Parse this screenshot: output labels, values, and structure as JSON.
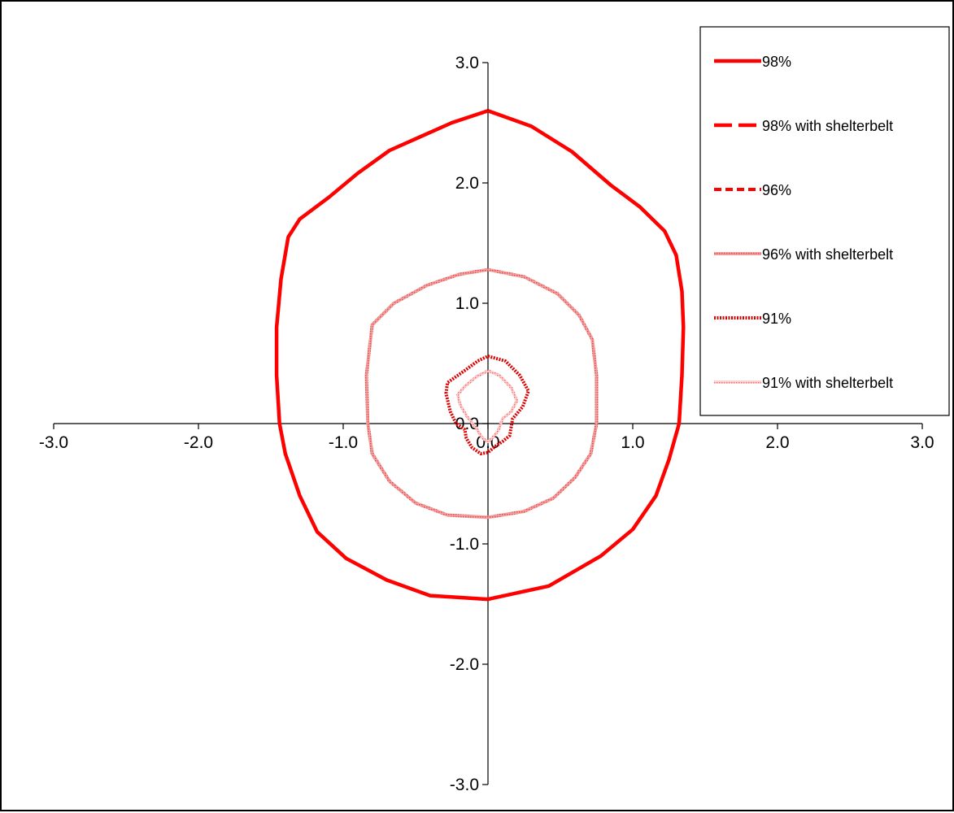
{
  "chart_data": {
    "type": "line",
    "title": "",
    "xlabel": "",
    "ylabel": "",
    "xlim": [
      -3.0,
      3.0
    ],
    "ylim": [
      -3.0,
      3.0
    ],
    "axes_cross_at_origin": true,
    "grid": false,
    "legend_position": "top-right",
    "x_tick_labels": [
      "-3.0",
      "-2.0",
      "-1.0",
      "0.0",
      "1.0",
      "2.0",
      "3.0"
    ],
    "y_tick_labels": [
      "3.0",
      "2.0",
      "1.0",
      "0.0",
      "-1.0",
      "-2.0",
      "-3.0"
    ],
    "x_tick_values": [
      -3,
      -2,
      -1,
      0,
      1,
      2,
      3
    ],
    "y_tick_values": [
      3,
      2,
      1,
      0,
      -1,
      -2,
      -3
    ],
    "series": [
      {
        "name": "98%",
        "color": "#ff0000",
        "style": "solid",
        "points": [
          [
            0.0,
            2.6
          ],
          [
            0.3,
            2.47
          ],
          [
            0.58,
            2.26
          ],
          [
            0.85,
            1.98
          ],
          [
            1.05,
            1.8
          ],
          [
            1.22,
            1.6
          ],
          [
            1.3,
            1.4
          ],
          [
            1.34,
            1.1
          ],
          [
            1.35,
            0.8
          ],
          [
            1.34,
            0.4
          ],
          [
            1.32,
            0.0
          ],
          [
            1.25,
            -0.3
          ],
          [
            1.16,
            -0.6
          ],
          [
            1.0,
            -0.88
          ],
          [
            0.78,
            -1.1
          ],
          [
            0.42,
            -1.35
          ],
          [
            0.0,
            -1.46
          ],
          [
            -0.4,
            -1.43
          ],
          [
            -0.7,
            -1.3
          ],
          [
            -0.98,
            -1.12
          ],
          [
            -1.18,
            -0.9
          ],
          [
            -1.3,
            -0.6
          ],
          [
            -1.4,
            -0.25
          ],
          [
            -1.44,
            0.0
          ],
          [
            -1.46,
            0.4
          ],
          [
            -1.46,
            0.8
          ],
          [
            -1.43,
            1.2
          ],
          [
            -1.38,
            1.55
          ],
          [
            -1.3,
            1.7
          ],
          [
            -1.1,
            1.88
          ],
          [
            -0.9,
            2.08
          ],
          [
            -0.68,
            2.27
          ],
          [
            -0.25,
            2.5
          ],
          [
            0.0,
            2.6
          ]
        ]
      },
      {
        "name": "98% with shelterbelt",
        "color": "#ff0000",
        "style": "dashed",
        "points": []
      },
      {
        "name": "96%",
        "color": "#ff0000",
        "style": "short-dashed",
        "points": []
      },
      {
        "name": "96% with shelterbelt",
        "color": "#f08080",
        "style": "solid-hatched",
        "points": [
          [
            0.0,
            1.28
          ],
          [
            0.25,
            1.22
          ],
          [
            0.48,
            1.08
          ],
          [
            0.63,
            0.9
          ],
          [
            0.72,
            0.7
          ],
          [
            0.75,
            0.4
          ],
          [
            0.75,
            0.0
          ],
          [
            0.71,
            -0.25
          ],
          [
            0.6,
            -0.45
          ],
          [
            0.45,
            -0.62
          ],
          [
            0.25,
            -0.73
          ],
          [
            0.0,
            -0.78
          ],
          [
            -0.28,
            -0.76
          ],
          [
            -0.5,
            -0.66
          ],
          [
            -0.68,
            -0.48
          ],
          [
            -0.8,
            -0.25
          ],
          [
            -0.83,
            0.0
          ],
          [
            -0.84,
            0.4
          ],
          [
            -0.8,
            0.82
          ],
          [
            -0.65,
            1.0
          ],
          [
            -0.42,
            1.15
          ],
          [
            -0.2,
            1.24
          ],
          [
            0.0,
            1.28
          ]
        ]
      },
      {
        "name": "91%",
        "color": "#ff0000",
        "style": "dotted-bold",
        "points": [
          [
            0.0,
            0.56
          ],
          [
            0.12,
            0.52
          ],
          [
            0.22,
            0.4
          ],
          [
            0.28,
            0.27
          ],
          [
            0.24,
            0.14
          ],
          [
            0.17,
            0.04
          ],
          [
            0.15,
            -0.1
          ],
          [
            0.1,
            -0.15
          ],
          [
            0.05,
            -0.19
          ],
          [
            0.0,
            -0.24
          ],
          [
            -0.05,
            -0.25
          ],
          [
            -0.11,
            -0.2
          ],
          [
            -0.15,
            -0.12
          ],
          [
            -0.16,
            -0.05
          ],
          [
            -0.22,
            0.0
          ],
          [
            -0.26,
            0.1
          ],
          [
            -0.29,
            0.25
          ],
          [
            -0.28,
            0.34
          ],
          [
            -0.15,
            0.45
          ],
          [
            -0.07,
            0.52
          ],
          [
            0.0,
            0.56
          ]
        ]
      },
      {
        "name": "91% with shelterbelt",
        "color": "#f4a0a0",
        "style": "dotted-light",
        "points": [
          [
            0.0,
            0.44
          ],
          [
            0.08,
            0.4
          ],
          [
            0.16,
            0.3
          ],
          [
            0.2,
            0.19
          ],
          [
            0.16,
            0.1
          ],
          [
            0.1,
            0.04
          ],
          [
            0.07,
            -0.06
          ],
          [
            0.03,
            -0.12
          ],
          [
            0.0,
            -0.15
          ],
          [
            -0.04,
            -0.12
          ],
          [
            -0.08,
            -0.04
          ],
          [
            -0.14,
            0.05
          ],
          [
            -0.19,
            0.15
          ],
          [
            -0.21,
            0.24
          ],
          [
            -0.16,
            0.31
          ],
          [
            -0.08,
            0.39
          ],
          [
            0.0,
            0.44
          ]
        ]
      }
    ]
  }
}
